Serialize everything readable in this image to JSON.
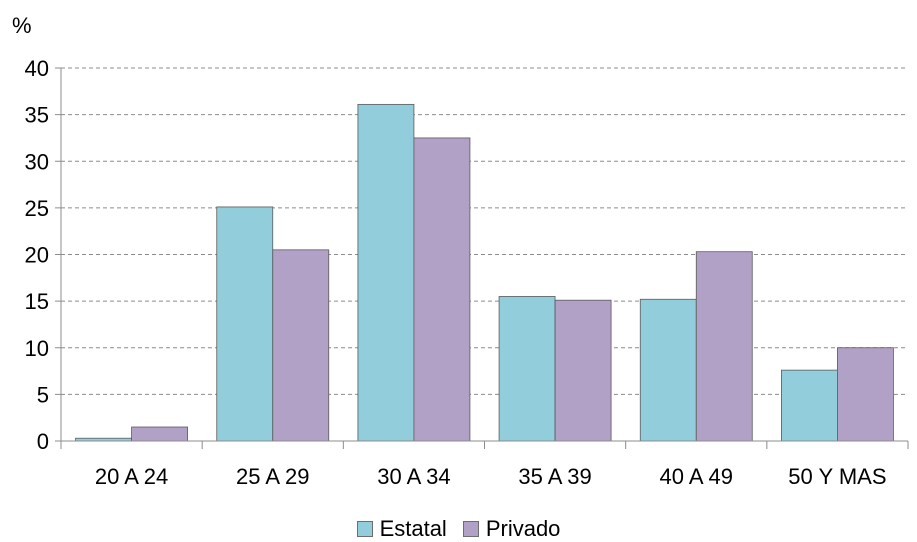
{
  "chart_data": {
    "type": "bar",
    "ylabel": "%",
    "xlabel": "",
    "ylim": [
      0,
      40
    ],
    "yticks": [
      0,
      5,
      10,
      15,
      20,
      25,
      30,
      35,
      40
    ],
    "grid": true,
    "legend_position": "bottom",
    "categories": [
      "20 A 24",
      "25 A 29",
      "30 A 34",
      "35 A 39",
      "40 A 49",
      "50 Y MAS"
    ],
    "series": [
      {
        "name": "Estatal",
        "color": "#92cddc",
        "values": [
          0.3,
          25.1,
          36.1,
          15.5,
          15.2,
          7.6
        ]
      },
      {
        "name": "Privado",
        "color": "#b2a1c7",
        "values": [
          1.5,
          20.5,
          32.5,
          15.1,
          20.3,
          10.0
        ]
      }
    ]
  }
}
